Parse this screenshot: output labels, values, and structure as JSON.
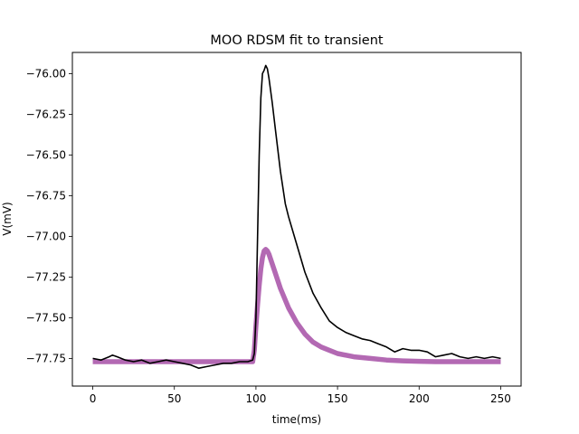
{
  "chart_data": {
    "type": "line",
    "title": "MOO RDSM fit to transient",
    "xlabel": "time(ms)",
    "ylabel": "V(mV)",
    "xlim": [
      -12.5,
      262.5
    ],
    "ylim": [
      -77.92,
      -75.87
    ],
    "xticks": [
      0,
      50,
      100,
      150,
      200,
      250
    ],
    "yticks": [
      -77.75,
      -77.5,
      -77.25,
      -77.0,
      -76.75,
      -76.5,
      -76.25,
      -76.0
    ],
    "xtick_labels": [
      "0",
      "50",
      "100",
      "150",
      "200",
      "250"
    ],
    "ytick_labels": [
      "−77.75",
      "−77.50",
      "−77.25",
      "−77.00",
      "−76.75",
      "−76.50",
      "−76.25",
      "−76.00"
    ],
    "grid": false,
    "series": [
      {
        "color": "#b369b3",
        "style": "thick",
        "x": [
          0,
          20,
          40,
          60,
          80,
          98,
          99,
          100,
          101,
          102,
          103,
          104,
          105,
          106,
          107,
          108,
          110,
          112,
          115,
          120,
          125,
          130,
          135,
          140,
          145,
          150,
          160,
          170,
          180,
          190,
          200,
          210,
          220,
          230,
          240,
          250
        ],
        "y": [
          -77.77,
          -77.77,
          -77.77,
          -77.77,
          -77.77,
          -77.77,
          -77.7,
          -77.55,
          -77.42,
          -77.3,
          -77.2,
          -77.13,
          -77.09,
          -77.08,
          -77.09,
          -77.11,
          -77.17,
          -77.23,
          -77.32,
          -77.44,
          -77.53,
          -77.6,
          -77.65,
          -77.68,
          -77.7,
          -77.72,
          -77.74,
          -77.75,
          -77.76,
          -77.765,
          -77.768,
          -77.77,
          -77.77,
          -77.77,
          -77.77,
          -77.77
        ]
      },
      {
        "color": "#000000",
        "style": "thin",
        "x": [
          0,
          5,
          10,
          12,
          15,
          20,
          25,
          30,
          35,
          40,
          45,
          50,
          55,
          60,
          65,
          70,
          75,
          80,
          85,
          90,
          95,
          98,
          99,
          100,
          101,
          102,
          103,
          104,
          105,
          106,
          107,
          108,
          110,
          112,
          115,
          118,
          120,
          125,
          130,
          135,
          140,
          145,
          150,
          155,
          160,
          165,
          170,
          175,
          180,
          185,
          190,
          195,
          200,
          205,
          210,
          215,
          220,
          225,
          230,
          235,
          240,
          245,
          250
        ],
        "y": [
          -77.75,
          -77.76,
          -77.74,
          -77.73,
          -77.74,
          -77.76,
          -77.77,
          -77.76,
          -77.78,
          -77.77,
          -77.76,
          -77.77,
          -77.78,
          -77.79,
          -77.81,
          -77.8,
          -77.79,
          -77.78,
          -77.78,
          -77.77,
          -77.77,
          -77.76,
          -77.72,
          -77.5,
          -77.0,
          -76.5,
          -76.15,
          -76.0,
          -75.98,
          -75.95,
          -75.97,
          -76.03,
          -76.18,
          -76.35,
          -76.6,
          -76.8,
          -76.88,
          -77.05,
          -77.22,
          -77.35,
          -77.44,
          -77.52,
          -77.56,
          -77.59,
          -77.61,
          -77.63,
          -77.64,
          -77.66,
          -77.68,
          -77.71,
          -77.69,
          -77.7,
          -77.7,
          -77.71,
          -77.74,
          -77.73,
          -77.72,
          -77.74,
          -77.75,
          -77.74,
          -77.75,
          -77.74,
          -77.75
        ]
      }
    ]
  }
}
